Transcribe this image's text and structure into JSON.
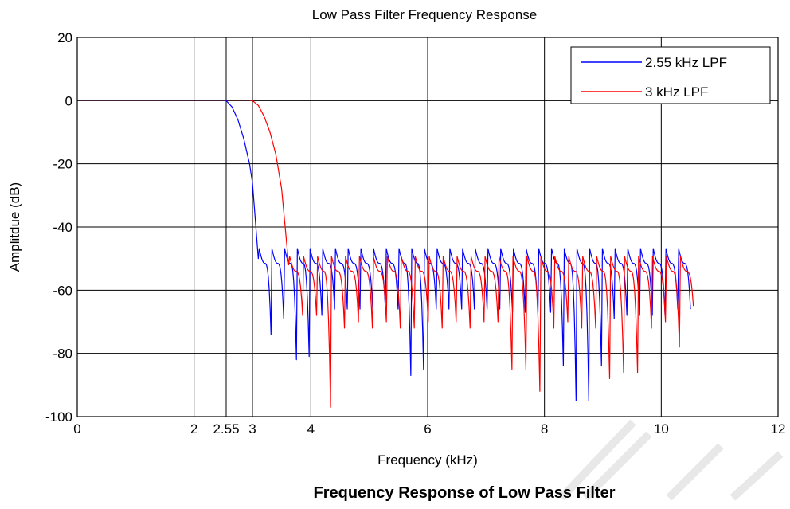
{
  "figure": {
    "caption": "Frequency Response of Low Pass Filter"
  },
  "chart_data": {
    "type": "line",
    "title": "Low Pass Filter Frequency Response",
    "xlabel": "Frequency (kHz)",
    "ylabel": "Amplitdue (dB)",
    "xlim": [
      0,
      12
    ],
    "ylim": [
      -100,
      20
    ],
    "x_ticks": [
      0,
      2,
      2.55,
      3,
      4,
      6,
      8,
      10,
      12
    ],
    "x_tick_labels": [
      "0",
      "2",
      "2.55",
      "3",
      "4",
      "6",
      "8",
      "10",
      "12"
    ],
    "y_ticks": [
      20,
      0,
      -20,
      -40,
      -60,
      -80,
      -100
    ],
    "y_tick_labels": [
      "20",
      "0",
      "-20",
      "-40",
      "-60",
      "-80",
      "-100"
    ],
    "grid": true,
    "legend_position": "top-right",
    "series": [
      {
        "name": "2.55 kHz LPF",
        "color": "#0000ff",
        "cutoff": 2.55,
        "transition": [
          [
            0,
            0.2
          ],
          [
            2.5,
            0.2
          ],
          [
            2.55,
            0
          ],
          [
            2.65,
            -2
          ],
          [
            2.75,
            -6
          ],
          [
            2.85,
            -12
          ],
          [
            2.95,
            -20
          ],
          [
            3.0,
            -26
          ],
          [
            3.05,
            -38
          ],
          [
            3.1,
            -50
          ]
        ],
        "ripple_start": 3.1,
        "ripple_end": 10.5,
        "ripple_lobes": 34,
        "ripple_peak": -51.5,
        "nulls": [
          [
            3.1,
            -65
          ],
          [
            3.22,
            -74
          ],
          [
            3.45,
            -69
          ],
          [
            3.65,
            -82
          ],
          [
            3.9,
            -81
          ],
          [
            4.15,
            -68
          ],
          [
            4.45,
            -66
          ],
          [
            4.75,
            -66
          ],
          [
            5.05,
            -66
          ],
          [
            5.35,
            -66
          ],
          [
            5.65,
            -87
          ],
          [
            5.95,
            -85
          ],
          [
            6.25,
            -66
          ],
          [
            6.55,
            -66
          ],
          [
            6.85,
            -66
          ],
          [
            7.15,
            -66
          ],
          [
            7.45,
            -67
          ],
          [
            7.75,
            -67
          ],
          [
            8.05,
            -67
          ],
          [
            8.35,
            -84
          ],
          [
            8.65,
            -95
          ],
          [
            8.95,
            -84
          ],
          [
            9.25,
            -69
          ],
          [
            9.55,
            -68
          ],
          [
            9.85,
            -68
          ],
          [
            10.15,
            -68
          ],
          [
            10.4,
            -66
          ]
        ]
      },
      {
        "name": "3 kHz LPF",
        "color": "#ff0000",
        "cutoff": 3.0,
        "transition": [
          [
            0,
            0.2
          ],
          [
            2.95,
            0.2
          ],
          [
            3.0,
            0
          ],
          [
            3.1,
            -1.5
          ],
          [
            3.2,
            -5
          ],
          [
            3.3,
            -10
          ],
          [
            3.4,
            -17
          ],
          [
            3.5,
            -28
          ],
          [
            3.55,
            -38
          ],
          [
            3.62,
            -52
          ]
        ],
        "ripple_start": 3.62,
        "ripple_end": 10.55,
        "ripple_lobes": 29,
        "ripple_peak": -54,
        "nulls": [
          [
            3.62,
            -70
          ],
          [
            3.72,
            -70
          ],
          [
            3.95,
            -68
          ],
          [
            4.3,
            -97
          ],
          [
            4.55,
            -72
          ],
          [
            4.85,
            -70
          ],
          [
            5.1,
            -72
          ],
          [
            5.4,
            -70
          ],
          [
            5.65,
            -72
          ],
          [
            5.95,
            -70
          ],
          [
            6.2,
            -72
          ],
          [
            6.5,
            -70
          ],
          [
            6.75,
            -72
          ],
          [
            7.0,
            -70
          ],
          [
            7.3,
            -70
          ],
          [
            7.55,
            -85
          ],
          [
            7.85,
            -92
          ],
          [
            8.1,
            -72
          ],
          [
            8.4,
            -70
          ],
          [
            8.65,
            -72
          ],
          [
            8.95,
            -72
          ],
          [
            9.2,
            -88
          ],
          [
            9.5,
            -86
          ],
          [
            9.75,
            -72
          ],
          [
            10.0,
            -70
          ],
          [
            10.3,
            -78
          ],
          [
            10.55,
            -65
          ]
        ]
      }
    ]
  }
}
